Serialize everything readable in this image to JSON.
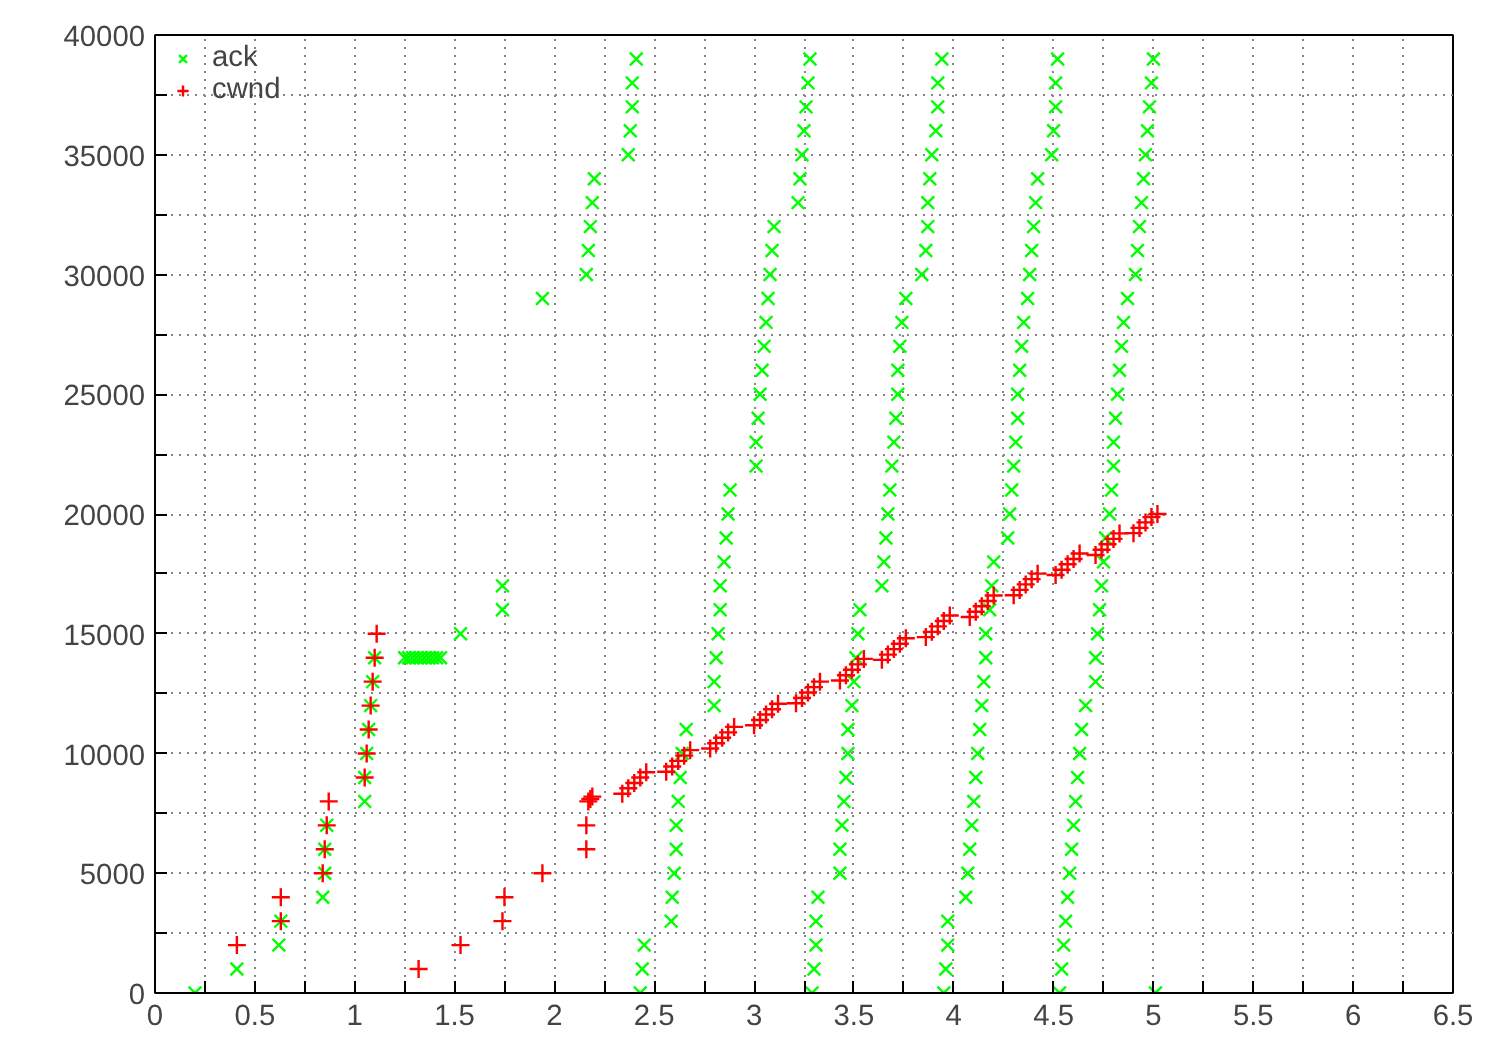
{
  "chart_data": {
    "type": "scatter",
    "xlim": [
      0,
      6.5
    ],
    "xticks": [
      0,
      {
        "value": 0.25,
        "label": null
      },
      0.5,
      {
        "value": 0.75,
        "label": null
      },
      1,
      {
        "value": 1.25,
        "label": null
      },
      1.5,
      {
        "value": 1.75,
        "label": null
      },
      2,
      {
        "value": 2.25,
        "label": null
      },
      2.5,
      {
        "value": 2.75,
        "label": null
      },
      3,
      {
        "value": 3.25,
        "label": null
      },
      3.5,
      {
        "value": 3.75,
        "label": null
      },
      4,
      {
        "value": 4.25,
        "label": null
      },
      4.5,
      {
        "value": 4.75,
        "label": null
      },
      5,
      {
        "value": 5.25,
        "label": null
      },
      5.5,
      {
        "value": 5.75,
        "label": null
      },
      6,
      {
        "value": 6.25,
        "label": null
      },
      6.5
    ],
    "ylim": [
      0,
      40000
    ],
    "yticks": [
      0,
      {
        "value": 2500,
        "label": null
      },
      5000,
      {
        "value": 7500,
        "label": null
      },
      10000,
      {
        "value": 12500,
        "label": null
      },
      15000,
      {
        "value": 17500,
        "label": null
      },
      20000,
      {
        "value": 22500,
        "label": null
      },
      25000,
      {
        "value": 27500,
        "label": null
      },
      30000,
      {
        "value": 32500,
        "label": null
      },
      35000,
      {
        "value": 37500,
        "label": null
      },
      40000
    ],
    "grid": true,
    "legend": "top left",
    "series": [
      {
        "name": "ack",
        "color": "#00ff00",
        "marker": "x",
        "x": [
          0.2,
          0.41,
          0.62,
          0.63,
          0.84,
          0.85,
          0.85,
          0.86,
          1.05,
          1.05,
          1.06,
          1.07,
          1.08,
          1.09,
          1.1,
          1.25,
          1.27,
          1.29,
          1.31,
          1.33,
          1.35,
          1.37,
          1.39,
          1.41,
          1.43,
          1.53,
          1.74,
          1.74,
          1.94,
          2.16,
          2.17,
          2.18,
          2.19,
          2.2,
          2.37,
          2.38,
          2.39,
          2.39,
          2.41,
          2.43,
          2.44,
          2.45,
          2.585,
          2.59,
          2.6,
          2.61,
          2.61,
          2.62,
          2.63,
          2.64,
          2.66,
          2.8,
          2.8,
          2.81,
          2.82,
          2.83,
          2.83,
          2.85,
          2.86,
          2.87,
          2.88,
          3.01,
          3.01,
          3.02,
          3.03,
          3.04,
          3.05,
          3.06,
          3.07,
          3.08,
          3.09,
          3.1,
          3.22,
          3.23,
          3.24,
          3.25,
          3.26,
          3.27,
          3.28,
          3.29,
          3.3,
          3.31,
          3.31,
          3.32,
          3.43,
          3.43,
          3.44,
          3.45,
          3.46,
          3.47,
          3.47,
          3.49,
          3.5,
          3.51,
          3.52,
          3.53,
          3.64,
          3.65,
          3.66,
          3.67,
          3.68,
          3.69,
          3.7,
          3.71,
          3.72,
          3.72,
          3.73,
          3.74,
          3.76,
          3.84,
          3.86,
          3.87,
          3.87,
          3.88,
          3.89,
          3.91,
          3.92,
          3.92,
          3.94,
          3.95,
          3.96,
          3.97,
          3.97,
          4.06,
          4.07,
          4.08,
          4.09,
          4.1,
          4.11,
          4.12,
          4.13,
          4.14,
          4.15,
          4.16,
          4.16,
          4.18,
          4.19,
          4.2,
          4.27,
          4.28,
          4.29,
          4.3,
          4.31,
          4.32,
          4.32,
          4.33,
          4.34,
          4.35,
          4.37,
          4.38,
          4.39,
          4.4,
          4.41,
          4.42,
          4.49,
          4.5,
          4.51,
          4.51,
          4.52,
          4.53,
          4.54,
          4.55,
          4.56,
          4.57,
          4.58,
          4.59,
          4.6,
          4.61,
          4.62,
          4.63,
          4.64,
          4.66,
          4.71,
          4.71,
          4.72,
          4.73,
          4.74,
          4.75,
          4.76,
          4.78,
          4.79,
          4.8,
          4.8,
          4.81,
          4.82,
          4.83,
          4.84,
          4.85,
          4.87,
          4.91,
          4.92,
          4.93,
          4.94,
          4.95,
          4.96,
          4.97,
          4.98,
          4.99,
          5.0,
          5.01
        ],
        "values": [
          0,
          1000,
          2000,
          3000,
          4000,
          5000,
          6000,
          7000,
          8000,
          9000,
          10000,
          11000,
          12000,
          13000,
          14000,
          14000,
          14000,
          14000,
          14000,
          14000,
          14000,
          14000,
          14000,
          14000,
          14000,
          15000,
          16000,
          17000,
          29000,
          30000,
          31000,
          32000,
          33000,
          34000,
          35000,
          36000,
          37000,
          38000,
          39000,
          0,
          1000,
          2000,
          3000,
          4000,
          5000,
          6000,
          7000,
          8000,
          9000,
          10000,
          11000,
          12000,
          13000,
          14000,
          15000,
          16000,
          17000,
          18000,
          19000,
          20000,
          21000,
          22000,
          23000,
          24000,
          25000,
          26000,
          27000,
          28000,
          29000,
          30000,
          31000,
          32000,
          33000,
          34000,
          35000,
          36000,
          37000,
          38000,
          39000,
          0,
          1000,
          2000,
          3000,
          4000,
          5000,
          6000,
          7000,
          8000,
          9000,
          10000,
          11000,
          12000,
          13000,
          14000,
          15000,
          16000,
          17000,
          18000,
          19000,
          20000,
          21000,
          22000,
          23000,
          24000,
          25000,
          26000,
          27000,
          28000,
          29000,
          30000,
          31000,
          32000,
          33000,
          34000,
          35000,
          36000,
          37000,
          38000,
          39000,
          0,
          1000,
          2000,
          3000,
          4000,
          5000,
          6000,
          7000,
          8000,
          9000,
          10000,
          11000,
          12000,
          13000,
          14000,
          15000,
          16000,
          17000,
          18000,
          19000,
          20000,
          21000,
          22000,
          23000,
          24000,
          25000,
          26000,
          27000,
          28000,
          29000,
          30000,
          31000,
          32000,
          33000,
          34000,
          35000,
          36000,
          37000,
          38000,
          39000,
          0,
          1000,
          2000,
          3000,
          4000,
          5000,
          6000,
          7000,
          8000,
          9000,
          10000,
          11000,
          12000,
          13000,
          14000,
          15000,
          16000,
          17000,
          18000,
          19000,
          20000,
          21000,
          22000,
          23000,
          24000,
          25000,
          26000,
          27000,
          28000,
          29000,
          30000,
          31000,
          32000,
          33000,
          34000,
          35000,
          36000,
          37000,
          38000,
          39000,
          0
        ]
      },
      {
        "name": "cwnd",
        "color": "#ff0000",
        "marker": "cross",
        "x": [
          0.41,
          0.63,
          0.63,
          0.84,
          0.85,
          0.86,
          0.87,
          1.05,
          1.06,
          1.07,
          1.08,
          1.09,
          1.1,
          1.11,
          1.32,
          1.53,
          1.74,
          1.75,
          1.94,
          2.16,
          2.16,
          2.17,
          2.18,
          2.19,
          2.34,
          2.37,
          2.4,
          2.43,
          2.46,
          2.56,
          2.59,
          2.62,
          2.65,
          2.68,
          2.78,
          2.81,
          2.84,
          2.87,
          2.9,
          3.0,
          3.03,
          3.06,
          3.09,
          3.12,
          3.21,
          3.24,
          3.27,
          3.3,
          3.33,
          3.43,
          3.46,
          3.49,
          3.52,
          3.55,
          3.64,
          3.67,
          3.7,
          3.73,
          3.76,
          3.86,
          3.89,
          3.92,
          3.95,
          3.98,
          4.08,
          4.11,
          4.14,
          4.17,
          4.2,
          4.3,
          4.33,
          4.36,
          4.39,
          4.42,
          4.51,
          4.54,
          4.57,
          4.6,
          4.63,
          4.71,
          4.74,
          4.77,
          4.8,
          4.83,
          4.9,
          4.93,
          4.96,
          4.99,
          5.02
        ],
        "values": [
          2000,
          3000,
          4000,
          5000,
          6000,
          7000,
          8000,
          9000,
          10000,
          11000,
          12000,
          13000,
          14000,
          15000,
          1000,
          2000,
          3000,
          4000,
          5000,
          6000,
          7000,
          8000,
          8100,
          8200,
          8320,
          8550,
          8770,
          9000,
          9220,
          9240,
          9460,
          9690,
          9910,
          10140,
          10210,
          10430,
          10660,
          10880,
          11110,
          11180,
          11400,
          11630,
          11850,
          12080,
          12100,
          12320,
          12550,
          12770,
          13000,
          13050,
          13270,
          13500,
          13720,
          13950,
          13910,
          14130,
          14360,
          14580,
          14810,
          14860,
          15080,
          15310,
          15530,
          15760,
          15700,
          15920,
          16150,
          16370,
          16600,
          16610,
          16830,
          17060,
          17280,
          17510,
          17450,
          17670,
          17900,
          18120,
          18350,
          18290,
          18510,
          18740,
          18960,
          19190,
          19200,
          19420,
          19650,
          19870,
          20000
        ]
      }
    ]
  }
}
